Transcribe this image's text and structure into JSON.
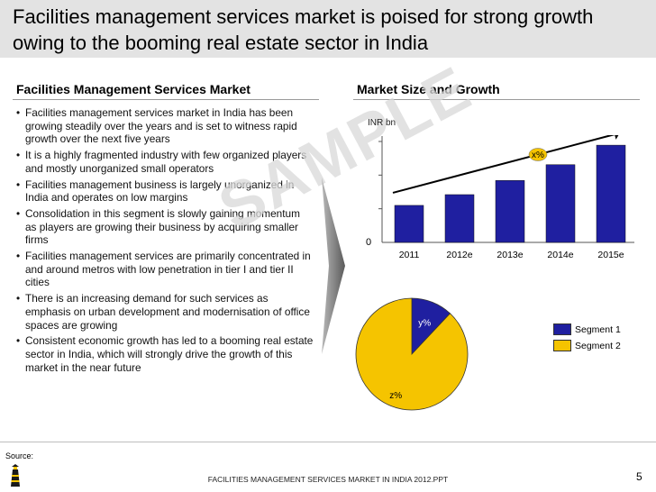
{
  "slide": {
    "title": "Facilities management services market is poised for strong growth owing to the booming real estate sector in India",
    "left_heading": "Facilities Management Services Market",
    "right_heading": "Market Size and Growth",
    "bullets": [
      "Facilities management services market in India has been growing steadily over the years and is set to witness rapid growth over the next five years",
      "It is a highly fragmented industry with few organized players and mostly unorganized small operators",
      "Facilities management business is largely unorganized in India and operates on low margins",
      "Consolidation in this segment is slowly gaining momentum as players are growing their business by acquiring smaller firms",
      "Facilities management services are primarily concentrated in and around metros with low penetration in tier I and tier II cities",
      "There is an increasing demand for such services as emphasis on urban development and modernisation of office spaces are growing",
      "Consistent economic growth has led to a booming real estate sector in India, which will strongly drive the growth of this market in the near future"
    ],
    "watermark": "SAMPLE",
    "source_label": "Source:",
    "footer_text": "FACILITIES MANAGEMENT SERVICES MARKET IN INDIA 2012.PPT",
    "page_number": "5"
  },
  "colors": {
    "bar_blue": "#1f1fa0",
    "segment_1": "#1f1fa0",
    "segment_2": "#f5c400",
    "title_bg": "#e3e3e3"
  },
  "chart_data": [
    {
      "type": "bar",
      "title": "Market Size and Growth",
      "ylabel": "INR bn",
      "y_zero_label": "0",
      "categories": [
        "2011",
        "2012e",
        "2013e",
        "2014e",
        "2015e"
      ],
      "values": [
        11,
        14.2,
        18.4,
        23.1,
        28.9
      ],
      "ylim": [
        0,
        30
      ],
      "growth_label": "x%",
      "grid": false
    },
    {
      "type": "pie",
      "labels": [
        "Segment 1",
        "Segment 2"
      ],
      "values": [
        12,
        88
      ],
      "slice_labels": [
        "y%",
        "z%"
      ],
      "legend_position": "right"
    }
  ]
}
